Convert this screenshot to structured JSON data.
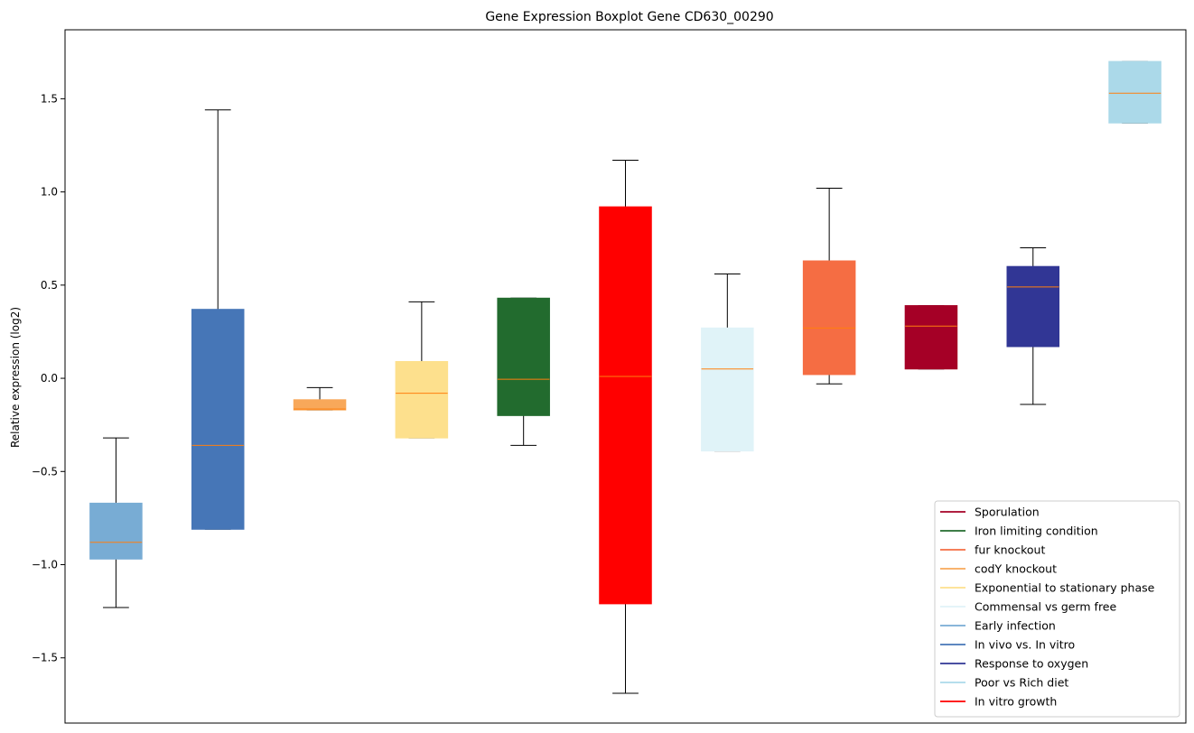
{
  "chart_data": {
    "type": "boxplot",
    "title": "Gene Expression Boxplot Gene CD630_00290",
    "xlabel": "",
    "ylabel": "Relative expression (log2)",
    "ylim": [
      -1.85,
      1.87
    ],
    "yticks": [
      {
        "value": 1.5,
        "label": "1.5"
      },
      {
        "value": 1.0,
        "label": "1.0"
      },
      {
        "value": 0.5,
        "label": "0.5"
      },
      {
        "value": 0.0,
        "label": "0.0"
      },
      {
        "value": -0.5,
        "label": "−0.5"
      },
      {
        "value": -1.0,
        "label": "−1.0"
      },
      {
        "value": -1.5,
        "label": "−1.5"
      }
    ],
    "grid": false,
    "legend_position": "lower-right",
    "median_color": "#ff7f0e",
    "boxes": [
      {
        "color": "#78acd4",
        "whisker_low": -1.23,
        "q1": -0.97,
        "median": -0.88,
        "q3": -0.67,
        "whisker_high": -0.32
      },
      {
        "color": "#4676b7",
        "whisker_low": -0.81,
        "q1": -0.81,
        "median": -0.36,
        "q3": 0.37,
        "whisker_high": 1.44
      },
      {
        "color": "#f8a85a",
        "whisker_low": -0.17,
        "q1": -0.17,
        "median": -0.165,
        "q3": -0.115,
        "whisker_high": -0.05
      },
      {
        "color": "#fde08d",
        "whisker_low": -0.32,
        "q1": -0.32,
        "median": -0.08,
        "q3": 0.09,
        "whisker_high": 0.41
      },
      {
        "color": "#226b2e",
        "whisker_low": -0.36,
        "q1": -0.2,
        "median": -0.005,
        "q3": 0.43,
        "whisker_high": 0.43
      },
      {
        "color": "#ff0000",
        "whisker_low": -1.69,
        "q1": -1.21,
        "median": 0.01,
        "q3": 0.92,
        "whisker_high": 1.17
      },
      {
        "color": "#e0f3f8",
        "whisker_low": -0.39,
        "q1": -0.39,
        "median": 0.05,
        "q3": 0.27,
        "whisker_high": 0.56
      },
      {
        "color": "#f56d43",
        "whisker_low": -0.03,
        "q1": 0.02,
        "median": 0.27,
        "q3": 0.63,
        "whisker_high": 1.02
      },
      {
        "color": "#a50026",
        "whisker_low": 0.05,
        "q1": 0.05,
        "median": 0.28,
        "q3": 0.39,
        "whisker_high": 0.39
      },
      {
        "color": "#313695",
        "whisker_low": -0.14,
        "q1": 0.17,
        "median": 0.49,
        "q3": 0.6,
        "whisker_high": 0.7
      },
      {
        "color": "#abd9e9",
        "whisker_low": 1.37,
        "q1": 1.37,
        "median": 1.53,
        "q3": 1.7,
        "whisker_high": 1.7
      }
    ],
    "legend": [
      {
        "label": "Sporulation",
        "color": "#a50026"
      },
      {
        "label": "Iron limiting condition",
        "color": "#226b2e"
      },
      {
        "label": "fur knockout",
        "color": "#f56d43"
      },
      {
        "label": "codY knockout",
        "color": "#f8a85a"
      },
      {
        "label": "Exponential to stationary phase",
        "color": "#fde08d"
      },
      {
        "label": "Commensal vs germ free",
        "color": "#e0f3f8"
      },
      {
        "label": "Early infection",
        "color": "#78acd4"
      },
      {
        "label": "In vivo vs. In vitro",
        "color": "#4676b7"
      },
      {
        "label": "Response to oxygen",
        "color": "#313695"
      },
      {
        "label": "Poor vs Rich diet",
        "color": "#abd9e9"
      },
      {
        "label": "In vitro growth",
        "color": "#ff0000"
      }
    ]
  }
}
